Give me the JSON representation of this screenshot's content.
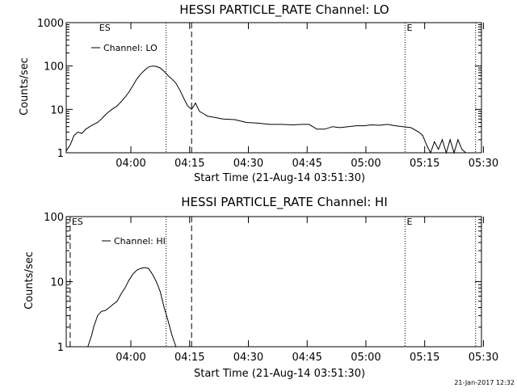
{
  "footer": {
    "timestamp": "21-Jan-2017 12:32"
  },
  "chart_data": [
    {
      "type": "line",
      "title": "HESSI PARTICLE_RATE Channel: LO",
      "xlabel": "Start Time (21-Aug-14 03:51:30)",
      "ylabel": "Counts/sec",
      "y_scale": "log",
      "ylim": [
        1,
        1000
      ],
      "xlim_minutes": [
        -8,
        98
      ],
      "x_ticks": [
        {
          "t": 8.5,
          "label": "04:00"
        },
        {
          "t": 23.5,
          "label": "04:15"
        },
        {
          "t": 38.5,
          "label": "04:30"
        },
        {
          "t": 53.5,
          "label": "04:45"
        },
        {
          "t": 68.5,
          "label": "05:00"
        },
        {
          "t": 83.5,
          "label": "05:15"
        },
        {
          "t": 98.5,
          "label": "05:30"
        }
      ],
      "y_ticks": [
        {
          "v": 1,
          "label": "1"
        },
        {
          "v": 10,
          "label": "10"
        },
        {
          "v": 100,
          "label": "100"
        },
        {
          "v": 1000,
          "label": "1000"
        }
      ],
      "legend": {
        "label": "Channel: LO",
        "placement": "top-left"
      },
      "markers": [
        {
          "t": 0,
          "label": "ES",
          "style": "none"
        },
        {
          "t": 17.5,
          "label": "",
          "style": "dotted"
        },
        {
          "t": 24.0,
          "label": "",
          "style": "dashed"
        },
        {
          "t": 78.5,
          "label": "E",
          "style": "dotted"
        },
        {
          "t": 96.5,
          "label": "",
          "style": "dotted"
        }
      ],
      "series": [
        {
          "name": "Channel: LO",
          "x": [
            -8,
            -7,
            -6,
            -5,
            -4,
            -3,
            -2,
            -1,
            0,
            1,
            2,
            3,
            4,
            5,
            6,
            7,
            8,
            9,
            10,
            11,
            12,
            13,
            14,
            15,
            16,
            17,
            18,
            19,
            20,
            21,
            22,
            23,
            24,
            25,
            26,
            27,
            28,
            30,
            32,
            35,
            38,
            41,
            44,
            47,
            50,
            52,
            54,
            56,
            58,
            60,
            62,
            64,
            66,
            68,
            70,
            72,
            74,
            76,
            78,
            80,
            82,
            83,
            84,
            85,
            86,
            87,
            88,
            89,
            90,
            91,
            92,
            93,
            94
          ],
          "y": [
            1.1,
            1.5,
            2.5,
            3.0,
            2.8,
            3.5,
            4.0,
            4.5,
            5.0,
            6.0,
            7.5,
            9.0,
            10.5,
            12.0,
            15.0,
            19.0,
            25.0,
            35.0,
            50.0,
            65.0,
            80.0,
            95.0,
            100.0,
            98.0,
            90.0,
            75.0,
            60.0,
            50.0,
            40.0,
            28.0,
            18.0,
            12.0,
            10.0,
            14.0,
            9.0,
            8.0,
            7.0,
            6.5,
            6.0,
            5.8,
            5.0,
            4.8,
            4.5,
            4.5,
            4.4,
            4.5,
            4.5,
            3.5,
            3.5,
            4.0,
            3.8,
            4.0,
            4.2,
            4.2,
            4.4,
            4.3,
            4.5,
            4.2,
            4.0,
            3.8,
            3.0,
            2.5,
            1.5,
            1.0,
            1.8,
            1.2,
            2.0,
            1.0,
            2.0,
            1.0,
            2.0,
            1.2,
            1.0
          ]
        }
      ]
    },
    {
      "type": "line",
      "title": "HESSI PARTICLE_RATE Channel: HI",
      "xlabel": "Start Time (21-Aug-14 03:51:30)",
      "ylabel": "Counts/sec",
      "y_scale": "log",
      "ylim": [
        1,
        100
      ],
      "xlim_minutes": [
        -8,
        98
      ],
      "x_ticks": [
        {
          "t": 8.5,
          "label": "04:00"
        },
        {
          "t": 23.5,
          "label": "04:15"
        },
        {
          "t": 38.5,
          "label": "04:30"
        },
        {
          "t": 53.5,
          "label": "04:45"
        },
        {
          "t": 68.5,
          "label": "05:00"
        },
        {
          "t": 83.5,
          "label": "05:15"
        },
        {
          "t": 98.5,
          "label": "05:30"
        }
      ],
      "y_ticks": [
        {
          "v": 1,
          "label": "1"
        },
        {
          "v": 10,
          "label": "10"
        },
        {
          "v": 100,
          "label": "100"
        }
      ],
      "legend": {
        "label": "Channel: HI",
        "placement": "top-left"
      },
      "markers": [
        {
          "t": -7.0,
          "label": "ES",
          "style": "dashed"
        },
        {
          "t": 17.5,
          "label": "",
          "style": "dotted"
        },
        {
          "t": 24.0,
          "label": "",
          "style": "dashed"
        },
        {
          "t": 78.5,
          "label": "E",
          "style": "dotted"
        },
        {
          "t": 96.5,
          "label": "",
          "style": "dotted"
        }
      ],
      "series": [
        {
          "name": "Channel: HI",
          "x": [
            -2.5,
            -1.5,
            -1,
            0,
            1,
            2,
            3,
            4,
            5,
            6,
            7,
            8,
            9,
            10,
            11,
            12,
            13,
            14,
            15,
            16,
            17,
            18,
            19,
            20
          ],
          "y": [
            1.0,
            1.5,
            2.0,
            3.0,
            3.5,
            3.6,
            4.0,
            4.5,
            5.0,
            6.5,
            8.0,
            10.5,
            13.0,
            15.0,
            16.0,
            16.5,
            16.0,
            13.0,
            10.0,
            7.0,
            4.0,
            2.5,
            1.5,
            1.0
          ]
        }
      ]
    }
  ]
}
